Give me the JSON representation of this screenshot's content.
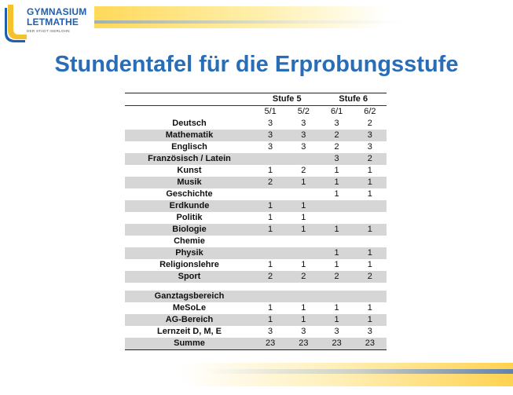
{
  "logo": {
    "line1": "GYMNASIUM",
    "line2": "LETMATHE",
    "sub": "DER STADT ISERLOHN"
  },
  "title": "Stundentafel für die Erprobungsstufe",
  "table": {
    "groups": [
      "Stufe 5",
      "Stufe 6"
    ],
    "columns": [
      "5/1",
      "5/2",
      "6/1",
      "6/2"
    ],
    "rows": [
      {
        "subject": "Deutsch",
        "values": [
          "3",
          "3",
          "3",
          "2"
        ]
      },
      {
        "subject": "Mathematik",
        "values": [
          "3",
          "3",
          "2",
          "3"
        ]
      },
      {
        "subject": "Englisch",
        "values": [
          "3",
          "3",
          "2",
          "3"
        ]
      },
      {
        "subject": "Französisch / Latein",
        "values": [
          "",
          "",
          "3",
          "2"
        ]
      },
      {
        "subject": "Kunst",
        "values": [
          "1",
          "2",
          "1",
          "1"
        ]
      },
      {
        "subject": "Musik",
        "values": [
          "2",
          "1",
          "1",
          "1"
        ]
      },
      {
        "subject": "Geschichte",
        "values": [
          "",
          "",
          "1",
          "1"
        ]
      },
      {
        "subject": "Erdkunde",
        "values": [
          "1",
          "1",
          "",
          ""
        ]
      },
      {
        "subject": "Politik",
        "values": [
          "1",
          "1",
          "",
          ""
        ]
      },
      {
        "subject": "Biologie",
        "values": [
          "1",
          "1",
          "1",
          "1"
        ]
      },
      {
        "subject": "Chemie",
        "values": [
          "",
          "",
          "",
          ""
        ]
      },
      {
        "subject": "Physik",
        "values": [
          "",
          "",
          "1",
          "1"
        ]
      },
      {
        "subject": "Religionslehre",
        "values": [
          "1",
          "1",
          "1",
          "1"
        ]
      },
      {
        "subject": "Sport",
        "values": [
          "2",
          "2",
          "2",
          "2"
        ]
      }
    ],
    "ganztag_label": "Ganztagsbereich",
    "ganztag_rows": [
      {
        "subject": "MeSoLe",
        "values": [
          "1",
          "1",
          "1",
          "1"
        ]
      },
      {
        "subject": "AG-Bereich",
        "values": [
          "1",
          "1",
          "1",
          "1"
        ]
      },
      {
        "subject": "Lernzeit D, M, E",
        "values": [
          "3",
          "3",
          "3",
          "3"
        ]
      },
      {
        "subject": "Summe",
        "values": [
          "23",
          "23",
          "23",
          "23"
        ]
      }
    ]
  },
  "colors": {
    "title": "#2a6db7",
    "shade": "#d6d6d6",
    "logo_blue": "#1f5fae",
    "logo_yellow": "#f5c22c"
  }
}
